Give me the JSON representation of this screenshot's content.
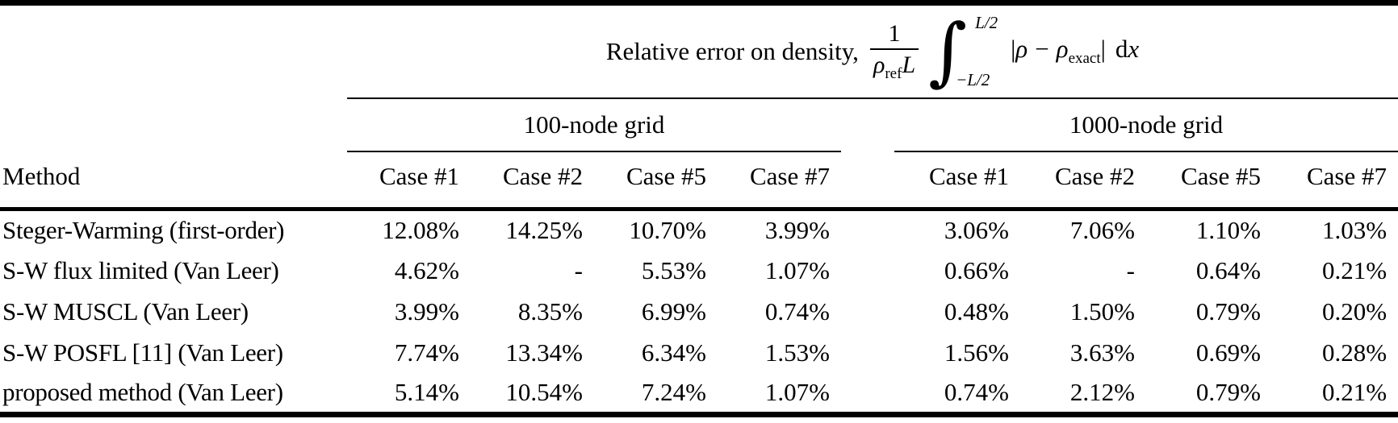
{
  "title": {
    "label": "Relative error on density,",
    "formula": {
      "numerator": "1",
      "den_rho": "ρ",
      "den_sub": "ref",
      "den_var": "L",
      "integral": "∫",
      "upper_limit": "L/2",
      "lower_limit": "−L/2",
      "bar_open": "|",
      "rho1": "ρ",
      "minus": "−",
      "rho2": "ρ",
      "rho2_sub": "exact",
      "bar_close": "|",
      "d": "d",
      "x": "x"
    }
  },
  "groups": [
    {
      "label": "100-node grid"
    },
    {
      "label": "1000-node grid"
    }
  ],
  "columns": {
    "method": "Method",
    "cases": [
      "Case #1",
      "Case #2",
      "Case #5",
      "Case #7"
    ]
  },
  "rows": [
    {
      "method": "Steger-Warming (first-order)",
      "g100": [
        "12.08%",
        "14.25%",
        "10.70%",
        "3.99%"
      ],
      "g1000": [
        "3.06%",
        "7.06%",
        "1.10%",
        "1.03%"
      ]
    },
    {
      "method": "S-W flux limited (Van Leer)",
      "g100": [
        "4.62%",
        "-",
        "5.53%",
        "1.07%"
      ],
      "g1000": [
        "0.66%",
        "-",
        "0.64%",
        "0.21%"
      ]
    },
    {
      "method": "S-W MUSCL (Van Leer)",
      "g100": [
        "3.99%",
        "8.35%",
        "6.99%",
        "0.74%"
      ],
      "g1000": [
        "0.48%",
        "1.50%",
        "0.79%",
        "0.20%"
      ]
    },
    {
      "method": "S-W POSFL [11] (Van Leer)",
      "g100": [
        "7.74%",
        "13.34%",
        "6.34%",
        "1.53%"
      ],
      "g1000": [
        "1.56%",
        "3.63%",
        "0.69%",
        "0.28%"
      ]
    },
    {
      "method": "proposed method (Van Leer)",
      "g100": [
        "5.14%",
        "10.54%",
        "7.24%",
        "1.07%"
      ],
      "g1000": [
        "0.74%",
        "2.12%",
        "0.79%",
        "0.21%"
      ]
    }
  ],
  "colors": {
    "text": "#000000",
    "background": "#ffffff",
    "rule": "#000000"
  }
}
